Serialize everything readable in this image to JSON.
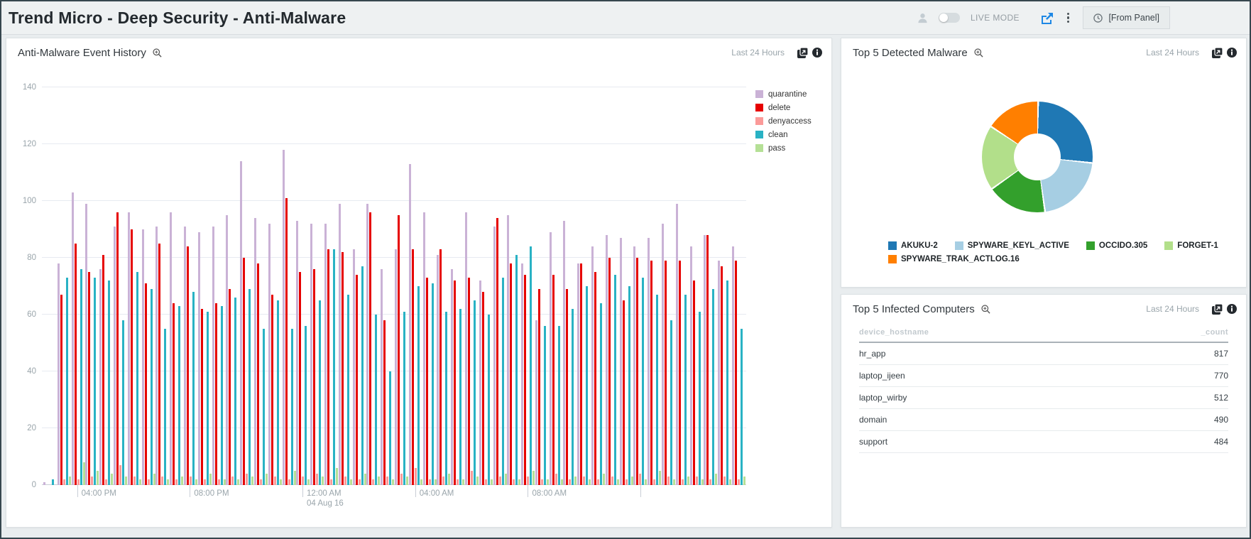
{
  "header": {
    "title": "Trend Micro - Deep Security - Anti-Malware",
    "live_mode_label": "LIVE MODE",
    "time_selector": "[From Panel]"
  },
  "panels": {
    "event_history": {
      "title": "Anti-Malware Event History",
      "time_range": "Last 24 Hours"
    },
    "top_malware": {
      "title": "Top 5 Detected Malware",
      "time_range": "Last 24 Hours"
    },
    "infected_computers": {
      "title": "Top 5 Infected Computers",
      "time_range": "Last 24 Hours"
    }
  },
  "chart_data": [
    {
      "type": "bar",
      "title": "Anti-Malware Event History",
      "ylabel": "",
      "ylim": [
        0,
        140
      ],
      "y_ticks": [
        0,
        20,
        40,
        60,
        80,
        100,
        120,
        140
      ],
      "grid": true,
      "legend_position": "top-right",
      "x_ticks": [
        {
          "index": 2,
          "label": "04:00 PM",
          "sublabel": ""
        },
        {
          "index": 10,
          "label": "08:00 PM",
          "sublabel": ""
        },
        {
          "index": 18,
          "label": "12:00 AM",
          "sublabel": "04 Aug 16"
        },
        {
          "index": 26,
          "label": "04:00 AM",
          "sublabel": ""
        },
        {
          "index": 34,
          "label": "08:00 AM",
          "sublabel": ""
        },
        {
          "index": 42,
          "label": "",
          "sublabel": ""
        }
      ],
      "series": [
        {
          "name": "quarantine",
          "color": "#cab2d6",
          "values": [
            1,
            78,
            103,
            99,
            76,
            91,
            96,
            90,
            91,
            96,
            91,
            89,
            91,
            95,
            114,
            94,
            92,
            118,
            93,
            92,
            92,
            99,
            83,
            99,
            76,
            83,
            113,
            96,
            81,
            76,
            96,
            72,
            91,
            95,
            78,
            58,
            89,
            93,
            78,
            84,
            88,
            87,
            84,
            87,
            92,
            99,
            84,
            88,
            79,
            84
          ]
        },
        {
          "name": "delete",
          "color": "#e60000",
          "values": [
            0,
            67,
            85,
            75,
            81,
            96,
            90,
            71,
            85,
            64,
            84,
            62,
            64,
            69,
            80,
            78,
            67,
            101,
            75,
            76,
            83,
            82,
            74,
            96,
            58,
            95,
            83,
            73,
            83,
            72,
            73,
            68,
            94,
            78,
            74,
            69,
            74,
            69,
            78,
            75,
            80,
            65,
            80,
            79,
            79,
            79,
            72,
            88,
            77,
            79
          ]
        },
        {
          "name": "denyaccess",
          "color": "#fb9a99",
          "values": [
            0,
            2,
            2,
            3,
            2,
            7,
            3,
            2,
            3,
            2,
            3,
            2,
            2,
            3,
            4,
            2,
            3,
            2,
            3,
            4,
            2,
            3,
            2,
            2,
            3,
            4,
            6,
            2,
            3,
            2,
            5,
            2,
            3,
            2,
            3,
            2,
            4,
            2,
            3,
            2,
            3,
            2,
            4,
            2,
            3,
            2,
            3,
            2,
            3,
            2
          ]
        },
        {
          "name": "clean",
          "color": "#29b2c4",
          "values": [
            2,
            73,
            76,
            73,
            72,
            58,
            75,
            69,
            55,
            63,
            68,
            61,
            63,
            66,
            69,
            55,
            65,
            55,
            56,
            65,
            83,
            67,
            77,
            60,
            40,
            61,
            70,
            71,
            61,
            62,
            65,
            60,
            73,
            81,
            84,
            56,
            56,
            62,
            70,
            64,
            74,
            70,
            73,
            67,
            58,
            67,
            61,
            69,
            72,
            55
          ]
        },
        {
          "name": "pass",
          "color": "#b5e096",
          "values": [
            0,
            3,
            8,
            5,
            4,
            3,
            2,
            4,
            2,
            3,
            2,
            4,
            2,
            2,
            3,
            4,
            2,
            5,
            2,
            3,
            6,
            2,
            4,
            3,
            2,
            3,
            2,
            2,
            4,
            2,
            3,
            2,
            4,
            2,
            5,
            2,
            2,
            3,
            2,
            4,
            2,
            3,
            2,
            5,
            2,
            3,
            2,
            4,
            2,
            3
          ]
        }
      ]
    },
    {
      "type": "pie",
      "title": "Top 5 Detected Malware",
      "donut": true,
      "legend_position": "bottom",
      "slices": [
        {
          "label": "AKUKU-2",
          "color": "#1f78b4",
          "pct": 26.5
        },
        {
          "label": "SPYWARE_KEYL_ACTIVE",
          "color": "#a6cee3",
          "pct": 21.0
        },
        {
          "label": "OCCIDO.305",
          "color": "#33a02c",
          "pct": 17.5
        },
        {
          "label": "FORGET-1",
          "color": "#b2df8a",
          "pct": 19.0
        },
        {
          "label": "SPYWARE_TRAK_ACTLOG.16",
          "color": "#ff7f00",
          "pct": 16.0
        }
      ]
    },
    {
      "type": "table",
      "title": "Top 5 Infected Computers",
      "columns": [
        "device_hostname",
        "_count"
      ],
      "rows": [
        [
          "hr_app",
          "817"
        ],
        [
          "laptop_ijeen",
          "770"
        ],
        [
          "laptop_wirby",
          "512"
        ],
        [
          "domain",
          "490"
        ],
        [
          "support",
          "484"
        ]
      ]
    }
  ]
}
